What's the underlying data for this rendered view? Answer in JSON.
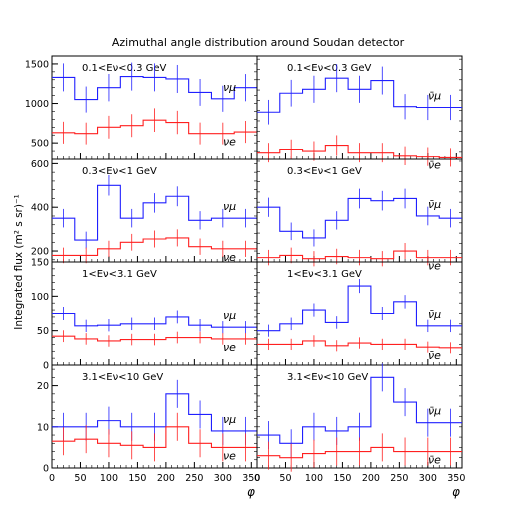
{
  "figure": {
    "title": "Azimuthal angle distribution around Soudan detector",
    "ylabel": "Integrated flux (m² s sr)⁻¹",
    "xlabel": "φ",
    "x_ticks": [
      "0",
      "50",
      "100",
      "150",
      "200",
      "250",
      "300",
      "350"
    ],
    "colors": {
      "nu_mu": "#2020ff",
      "nu_e": "#ff2020",
      "frame": "#000000"
    }
  },
  "chart_data": [
    {
      "type": "line",
      "row": 0,
      "col": 0,
      "energy_label": "0.1<Eν<0.3 GeV",
      "xlim": [
        0,
        360
      ],
      "ylim": [
        300,
        1600
      ],
      "y_ticks": [
        "500",
        "1000",
        "1500"
      ],
      "y_tick_values": [
        500,
        1000,
        1500
      ],
      "x_bins": [
        0,
        30,
        60,
        90,
        120,
        150,
        180,
        210,
        240,
        270,
        300,
        330,
        360
      ],
      "series": [
        {
          "name": "νμ",
          "values": [
            1330,
            1050,
            1200,
            1340,
            1330,
            1310,
            1140,
            1060,
            1200
          ],
          "bin_width": 40
        },
        {
          "name": "νe",
          "values": [
            630,
            620,
            700,
            720,
            790,
            760,
            620,
            620,
            640
          ],
          "bin_width": 40
        }
      ]
    },
    {
      "type": "line",
      "row": 0,
      "col": 1,
      "energy_label": "0.1<Eν<0.3 GeV",
      "xlim": [
        0,
        360
      ],
      "ylim": [
        300,
        1600
      ],
      "y_ticks": [],
      "y_tick_values": [],
      "series": [
        {
          "name": "ν̄μ",
          "values": [
            890,
            1130,
            1180,
            1320,
            1180,
            1290,
            960,
            950,
            950
          ],
          "bin_width": 40
        },
        {
          "name": "ν̄e",
          "values": [
            380,
            420,
            400,
            470,
            380,
            380,
            340,
            330,
            320
          ],
          "bin_width": 40
        }
      ]
    },
    {
      "type": "line",
      "row": 1,
      "col": 0,
      "energy_label": "0.3<Eν<1 GeV",
      "xlim": [
        0,
        360
      ],
      "ylim": [
        150,
        620
      ],
      "y_ticks": [
        "200",
        "400",
        "600"
      ],
      "y_tick_values": [
        200,
        400,
        600
      ],
      "series": [
        {
          "name": "νμ",
          "values": [
            350,
            250,
            500,
            350,
            420,
            450,
            340,
            350,
            350
          ],
          "bin_width": 40
        },
        {
          "name": "νe",
          "values": [
            180,
            180,
            210,
            240,
            255,
            260,
            220,
            210,
            210
          ],
          "bin_width": 40
        }
      ]
    },
    {
      "type": "line",
      "row": 1,
      "col": 1,
      "energy_label": "0.3<Eν<1 GeV",
      "xlim": [
        0,
        360
      ],
      "ylim": [
        150,
        620
      ],
      "y_ticks": [],
      "y_tick_values": [],
      "series": [
        {
          "name": "ν̄μ",
          "values": [
            400,
            290,
            260,
            340,
            440,
            430,
            440,
            360,
            350
          ],
          "bin_width": 40
        },
        {
          "name": "ν̄e",
          "values": [
            170,
            180,
            165,
            175,
            170,
            165,
            200,
            170,
            170
          ],
          "bin_width": 40
        }
      ]
    },
    {
      "type": "line",
      "row": 2,
      "col": 0,
      "energy_label": "1<Eν<3.1 GeV",
      "xlim": [
        0,
        360
      ],
      "ylim": [
        0,
        150
      ],
      "y_ticks": [
        "0",
        "50",
        "100",
        "150"
      ],
      "y_tick_values": [
        0,
        50,
        100,
        150
      ],
      "series": [
        {
          "name": "νμ",
          "values": [
            75,
            57,
            58,
            60,
            60,
            70,
            58,
            55,
            55
          ],
          "bin_width": 40
        },
        {
          "name": "νe",
          "values": [
            42,
            38,
            35,
            37,
            37,
            40,
            40,
            38,
            38
          ],
          "bin_width": 40
        }
      ]
    },
    {
      "type": "line",
      "row": 2,
      "col": 1,
      "energy_label": "1<Eν<3.1 GeV",
      "xlim": [
        0,
        360
      ],
      "ylim": [
        0,
        150
      ],
      "y_ticks": [],
      "y_tick_values": [],
      "series": [
        {
          "name": "ν̄μ",
          "values": [
            50,
            60,
            80,
            62,
            115,
            75,
            92,
            57,
            57
          ],
          "bin_width": 40
        },
        {
          "name": "ν̄e",
          "values": [
            30,
            30,
            35,
            28,
            32,
            30,
            30,
            26,
            25
          ],
          "bin_width": 40
        }
      ]
    },
    {
      "type": "line",
      "row": 3,
      "col": 0,
      "energy_label": "3.1<Eν<10 GeV",
      "xlim": [
        0,
        360
      ],
      "ylim": [
        0,
        25
      ],
      "y_ticks": [
        "0",
        "10",
        "20"
      ],
      "y_tick_values": [
        0,
        10,
        20
      ],
      "series": [
        {
          "name": "νμ",
          "values": [
            10,
            10,
            11.5,
            10,
            10,
            18,
            13,
            9,
            9
          ],
          "bin_width": 40
        },
        {
          "name": "νe",
          "values": [
            6.5,
            7,
            6,
            5.5,
            5,
            10,
            6,
            5,
            5
          ],
          "bin_width": 40
        }
      ]
    },
    {
      "type": "line",
      "row": 3,
      "col": 1,
      "energy_label": "3.1<Eν<10 GeV",
      "xlim": [
        0,
        360
      ],
      "ylim": [
        0,
        25
      ],
      "y_ticks": [],
      "y_tick_values": [],
      "series": [
        {
          "name": "ν̄μ",
          "values": [
            8,
            6,
            10,
            9,
            10,
            22,
            16,
            11,
            11
          ],
          "bin_width": 40
        },
        {
          "name": "ν̄e",
          "values": [
            3,
            2.5,
            3.5,
            4,
            4,
            5,
            4,
            4,
            4
          ],
          "bin_width": 40
        }
      ]
    }
  ]
}
